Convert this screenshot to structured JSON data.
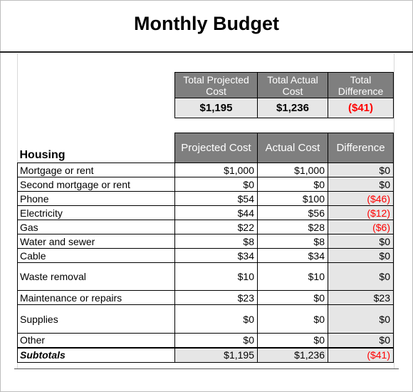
{
  "title": "Monthly Budget",
  "summary": {
    "headers": [
      "Total Projected Cost",
      "Total Actual Cost",
      "Total Difference"
    ],
    "values": [
      "$1,195",
      "$1,236",
      "($41)"
    ]
  },
  "section": {
    "name": "Housing",
    "columns": [
      "Projected Cost",
      "Actual Cost",
      "Difference"
    ],
    "rows": [
      {
        "label": "Mortgage or rent",
        "projected": "$1,000",
        "actual": "$1,000",
        "difference": "$0"
      },
      {
        "label": "Second mortgage or rent",
        "projected": "$0",
        "actual": "$0",
        "difference": "$0"
      },
      {
        "label": "Phone",
        "projected": "$54",
        "actual": "$100",
        "difference": "($46)"
      },
      {
        "label": "Electricity",
        "projected": "$44",
        "actual": "$56",
        "difference": "($12)"
      },
      {
        "label": "Gas",
        "projected": "$22",
        "actual": "$28",
        "difference": "($6)"
      },
      {
        "label": "Water and sewer",
        "projected": "$8",
        "actual": "$8",
        "difference": "$0"
      },
      {
        "label": "Cable",
        "projected": "$34",
        "actual": "$34",
        "difference": "$0"
      },
      {
        "label": "Waste removal",
        "projected": "$10",
        "actual": "$10",
        "difference": "$0"
      },
      {
        "label": "Maintenance or repairs",
        "projected": "$23",
        "actual": "$0",
        "difference": "$23"
      },
      {
        "label": "Supplies",
        "projected": "$0",
        "actual": "$0",
        "difference": "$0"
      },
      {
        "label": "Other",
        "projected": "$0",
        "actual": "$0",
        "difference": "$0"
      }
    ],
    "subtotal": {
      "label": "Subtotals",
      "projected": "$1,195",
      "actual": "$1,236",
      "difference": "($41)"
    }
  },
  "colors": {
    "header_bg": "#7f7f7f",
    "shade": "#e6e6e6",
    "negative": "#ff0000"
  }
}
